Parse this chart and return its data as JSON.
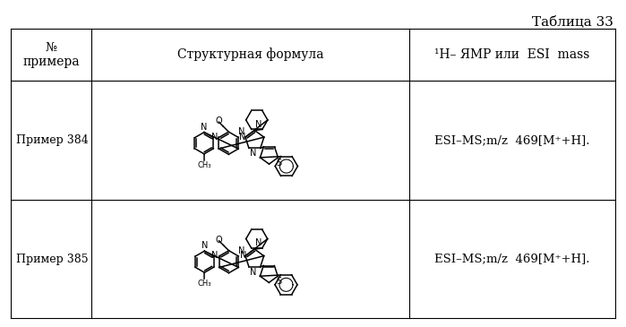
{
  "title": "Таблица 33",
  "col1_header": "№\nпримера",
  "col2_header": "Структурная формула",
  "col3_header": "¹H– ЯМР или  ESI  mass",
  "row1_label": "Пример 384",
  "row2_label": "Пример 385",
  "row1_data": "ESI–MS;m/z  469[M⁺+H].",
  "row2_data": "ESI–MS;m/z  469[M⁺+H].",
  "bg_color": "#ffffff",
  "text_color": "#000000",
  "line_color": "#000000",
  "title_fontsize": 11,
  "header_fontsize": 10,
  "label_fontsize": 9,
  "data_fontsize": 9.5
}
